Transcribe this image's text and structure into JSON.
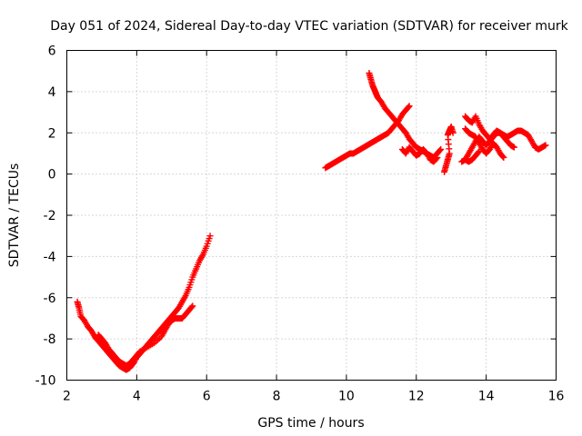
{
  "chart_data": {
    "type": "scatter",
    "title": "Day 051 of 2024, Sidereal Day-to-day VTEC variation (SDTVAR) for receiver murk",
    "xlabel": "GPS time / hours",
    "ylabel": "SDTVAR / TECUs",
    "xlim": [
      2,
      16
    ],
    "ylim": [
      -10,
      6
    ],
    "xticks": [
      2,
      4,
      6,
      8,
      10,
      12,
      14,
      16
    ],
    "yticks": [
      -10,
      -8,
      -6,
      -4,
      -2,
      0,
      2,
      4,
      6
    ],
    "xtick_labels": [
      "2",
      "4",
      "6",
      "8",
      "10",
      "12",
      "14",
      "16"
    ],
    "ytick_labels": [
      "-10",
      "-8",
      "-6",
      "-4",
      "-2",
      "0",
      "2",
      "4",
      "6"
    ],
    "grid": true,
    "marker": "plus",
    "color": "#ff0000",
    "series": [
      {
        "segments": [
          [
            [
              2.3,
              -6.2
            ],
            [
              2.35,
              -6.5
            ],
            [
              2.4,
              -6.9
            ],
            [
              2.5,
              -7.1
            ],
            [
              2.6,
              -7.4
            ],
            [
              2.7,
              -7.6
            ],
            [
              2.8,
              -7.9
            ],
            [
              2.9,
              -8.1
            ],
            [
              3.0,
              -8.3
            ],
            [
              3.1,
              -8.5
            ],
            [
              3.2,
              -8.7
            ],
            [
              3.3,
              -8.9
            ],
            [
              3.4,
              -9.1
            ],
            [
              3.5,
              -9.3
            ],
            [
              3.6,
              -9.4
            ],
            [
              3.7,
              -9.5
            ],
            [
              3.8,
              -9.4
            ],
            [
              3.9,
              -9.2
            ],
            [
              4.0,
              -8.9
            ],
            [
              4.1,
              -8.7
            ],
            [
              4.2,
              -8.5
            ],
            [
              4.3,
              -8.3
            ],
            [
              4.4,
              -8.1
            ],
            [
              4.5,
              -7.9
            ],
            [
              4.6,
              -7.7
            ],
            [
              4.7,
              -7.5
            ],
            [
              4.8,
              -7.3
            ],
            [
              4.9,
              -7.1
            ],
            [
              5.0,
              -6.9
            ],
            [
              5.1,
              -6.7
            ],
            [
              5.2,
              -6.5
            ],
            [
              5.3,
              -6.2
            ],
            [
              5.4,
              -5.9
            ],
            [
              5.5,
              -5.5
            ],
            [
              5.6,
              -5.0
            ],
            [
              5.7,
              -4.6
            ],
            [
              5.8,
              -4.2
            ],
            [
              5.9,
              -3.9
            ],
            [
              6.0,
              -3.5
            ],
            [
              6.1,
              -3.0
            ]
          ],
          [
            [
              2.9,
              -7.8
            ],
            [
              3.0,
              -8.0
            ],
            [
              3.1,
              -8.2
            ],
            [
              3.2,
              -8.5
            ],
            [
              3.3,
              -8.7
            ],
            [
              3.4,
              -8.9
            ],
            [
              3.5,
              -9.1
            ],
            [
              3.6,
              -9.2
            ],
            [
              3.7,
              -9.3
            ],
            [
              3.8,
              -9.2
            ],
            [
              3.9,
              -9.0
            ],
            [
              4.0,
              -8.8
            ],
            [
              4.1,
              -8.6
            ],
            [
              4.3,
              -8.4
            ],
            [
              4.5,
              -8.2
            ],
            [
              4.7,
              -7.9
            ],
            [
              4.8,
              -7.6
            ],
            [
              4.9,
              -7.3
            ],
            [
              5.0,
              -7.1
            ],
            [
              5.1,
              -7.0
            ],
            [
              5.2,
              -7.0
            ],
            [
              5.3,
              -7.0
            ],
            [
              5.4,
              -6.8
            ],
            [
              5.5,
              -6.6
            ],
            [
              5.6,
              -6.4
            ]
          ]
        ]
      },
      {
        "segments": [
          [
            [
              9.4,
              0.3
            ],
            [
              9.5,
              0.4
            ],
            [
              9.6,
              0.5
            ],
            [
              9.7,
              0.6
            ],
            [
              9.8,
              0.7
            ],
            [
              9.9,
              0.8
            ],
            [
              10.0,
              0.9
            ],
            [
              10.1,
              1.0
            ],
            [
              10.2,
              1.0
            ],
            [
              10.3,
              1.1
            ],
            [
              10.4,
              1.2
            ],
            [
              10.5,
              1.3
            ],
            [
              10.6,
              1.4
            ],
            [
              10.7,
              1.5
            ],
            [
              10.8,
              1.6
            ],
            [
              10.9,
              1.7
            ],
            [
              11.0,
              1.8
            ],
            [
              11.1,
              1.9
            ],
            [
              11.2,
              2.0
            ],
            [
              11.3,
              2.2
            ],
            [
              11.4,
              2.4
            ],
            [
              11.5,
              2.6
            ],
            [
              11.6,
              2.9
            ],
            [
              11.7,
              3.1
            ],
            [
              11.8,
              3.3
            ]
          ],
          [
            [
              10.65,
              4.9
            ],
            [
              10.7,
              4.6
            ],
            [
              10.75,
              4.3
            ],
            [
              10.8,
              4.1
            ],
            [
              10.85,
              3.9
            ],
            [
              10.9,
              3.7
            ],
            [
              11.0,
              3.5
            ],
            [
              11.1,
              3.2
            ],
            [
              11.2,
              3.0
            ],
            [
              11.3,
              2.8
            ],
            [
              11.4,
              2.6
            ],
            [
              11.5,
              2.4
            ],
            [
              11.6,
              2.2
            ],
            [
              11.7,
              2.0
            ],
            [
              11.8,
              1.7
            ],
            [
              11.9,
              1.5
            ],
            [
              12.0,
              1.3
            ],
            [
              12.1,
              1.2
            ],
            [
              12.2,
              1.1
            ],
            [
              12.3,
              1.0
            ],
            [
              12.4,
              0.9
            ],
            [
              12.5,
              0.8
            ],
            [
              12.6,
              1.0
            ],
            [
              12.7,
              1.2
            ]
          ],
          [
            [
              11.6,
              1.2
            ],
            [
              11.7,
              1.0
            ],
            [
              11.8,
              1.3
            ],
            [
              11.9,
              1.1
            ],
            [
              12.0,
              0.9
            ],
            [
              12.1,
              1.0
            ],
            [
              12.2,
              1.2
            ],
            [
              12.3,
              1.0
            ],
            [
              12.4,
              0.7
            ],
            [
              12.5,
              0.6
            ],
            [
              12.6,
              0.8
            ]
          ],
          [
            [
              12.8,
              0.1
            ],
            [
              12.85,
              0.4
            ],
            [
              12.9,
              0.7
            ],
            [
              12.95,
              1.0
            ],
            [
              12.9,
              1.9
            ],
            [
              12.95,
              2.1
            ],
            [
              13.0,
              2.3
            ],
            [
              13.05,
              2.0
            ]
          ],
          [
            [
              13.4,
              2.8
            ],
            [
              13.5,
              2.6
            ],
            [
              13.6,
              2.5
            ],
            [
              13.7,
              2.8
            ],
            [
              13.8,
              2.4
            ],
            [
              13.9,
              2.1
            ],
            [
              14.0,
              1.9
            ],
            [
              14.1,
              1.7
            ],
            [
              14.2,
              1.9
            ],
            [
              14.3,
              2.1
            ],
            [
              14.4,
              2.0
            ],
            [
              14.5,
              1.9
            ],
            [
              14.6,
              1.8
            ],
            [
              14.7,
              1.9
            ],
            [
              14.8,
              2.0
            ],
            [
              14.9,
              2.1
            ],
            [
              15.0,
              2.1
            ],
            [
              15.1,
              2.0
            ],
            [
              15.2,
              1.9
            ],
            [
              15.3,
              1.6
            ],
            [
              15.4,
              1.3
            ],
            [
              15.5,
              1.2
            ],
            [
              15.6,
              1.3
            ],
            [
              15.7,
              1.4
            ]
          ],
          [
            [
              13.4,
              0.7
            ],
            [
              13.5,
              1.0
            ],
            [
              13.6,
              1.3
            ],
            [
              13.7,
              1.6
            ],
            [
              13.8,
              1.8
            ],
            [
              13.9,
              1.6
            ],
            [
              14.0,
              1.4
            ],
            [
              14.1,
              1.6
            ],
            [
              14.2,
              1.8
            ],
            [
              14.3,
              2.0
            ],
            [
              14.4,
              2.0
            ],
            [
              14.5,
              1.8
            ],
            [
              14.6,
              1.6
            ],
            [
              14.7,
              1.4
            ],
            [
              14.8,
              1.3
            ]
          ],
          [
            [
              13.4,
              2.2
            ],
            [
              13.5,
              2.0
            ],
            [
              13.6,
              1.9
            ],
            [
              13.7,
              1.8
            ],
            [
              13.8,
              1.5
            ],
            [
              13.9,
              1.2
            ],
            [
              14.0,
              1.0
            ],
            [
              14.1,
              1.2
            ],
            [
              14.2,
              1.5
            ],
            [
              14.3,
              1.3
            ],
            [
              14.4,
              1.0
            ],
            [
              14.5,
              0.8
            ]
          ],
          [
            [
              13.3,
              0.6
            ],
            [
              13.4,
              0.7
            ],
            [
              13.5,
              0.6
            ],
            [
              13.6,
              0.7
            ],
            [
              13.7,
              0.9
            ],
            [
              13.8,
              1.1
            ]
          ]
        ]
      }
    ]
  }
}
